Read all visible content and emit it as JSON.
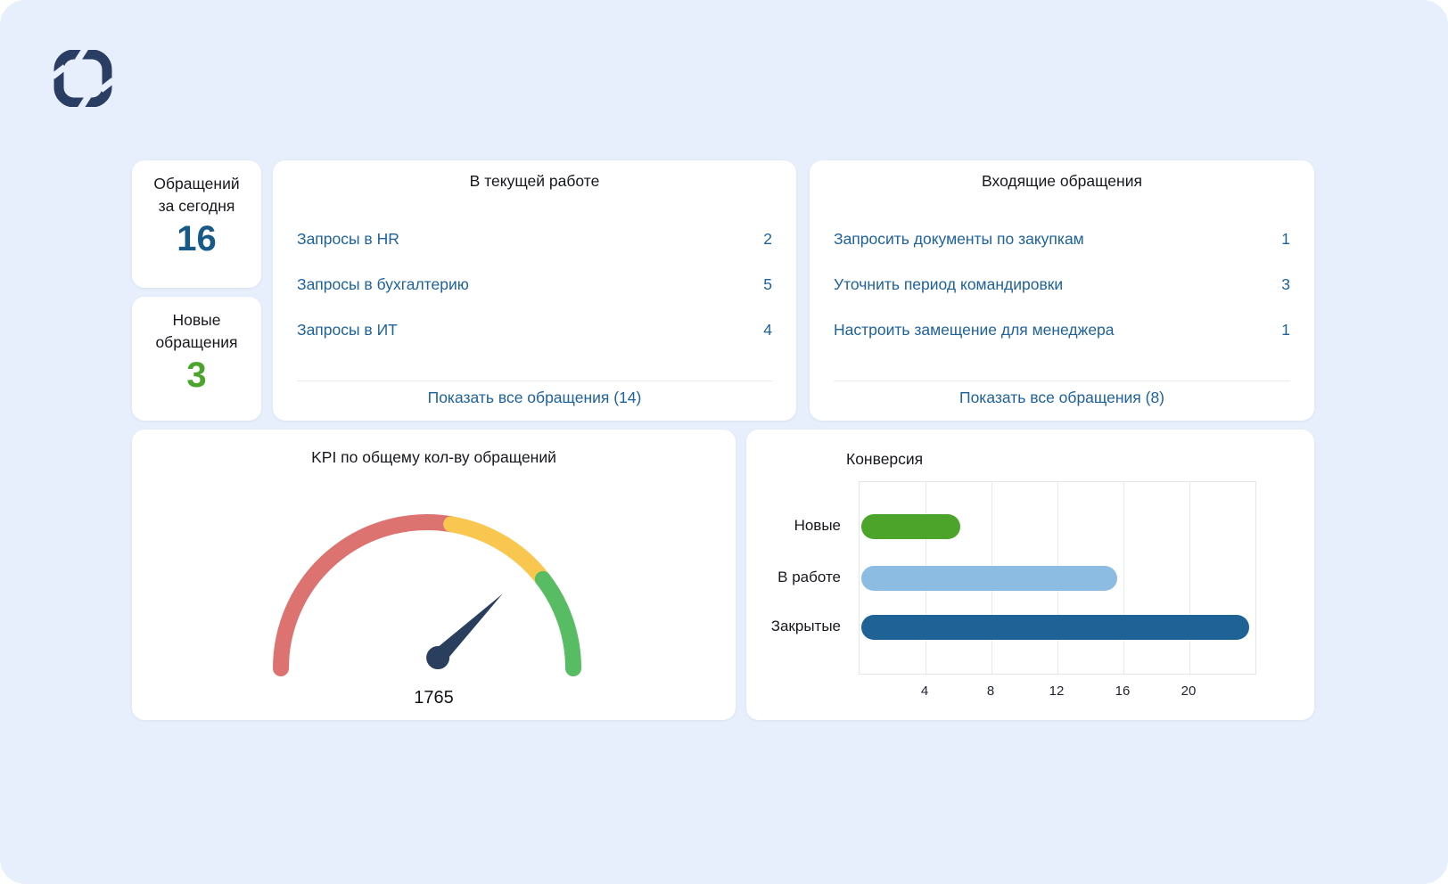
{
  "accent": {
    "link_blue": "#1E629B",
    "stat_blue": "#175A87",
    "stat_green": "#4BA42C",
    "logo_navy": "#2A3D63"
  },
  "stats": [
    {
      "line1": "Обращений",
      "line2": "за сегодня",
      "value": "16",
      "value_color": "#175A87"
    },
    {
      "line1": "Новые",
      "line2": "обращения",
      "value": "3",
      "value_color": "#4BA42C"
    }
  ],
  "current_work": {
    "title": "В текущей работе",
    "items": [
      {
        "label": "Запросы в HR",
        "count": "2"
      },
      {
        "label": "Запросы в бухгалтерию",
        "count": "5"
      },
      {
        "label": "Запросы в ИТ",
        "count": "4"
      }
    ],
    "link": "Показать все обращения (14)"
  },
  "incoming": {
    "title": "Входящие обращения",
    "items": [
      {
        "label": "Запросить документы по закупкам",
        "count": "1"
      },
      {
        "label": "Уточнить период командировки",
        "count": "3"
      },
      {
        "label": "Настроить замещение для менеджера",
        "count": "1"
      }
    ],
    "link": "Показать все обращения (8)"
  },
  "chart_data": [
    {
      "type": "gauge",
      "title": "KPI по общему кол-ву обращений",
      "value": "1765",
      "segments": [
        {
          "from": 0,
          "to": 0.553,
          "color": "#DC7370"
        },
        {
          "from": 0.553,
          "to": 0.791,
          "color": "#F9C74F"
        },
        {
          "from": 0.791,
          "to": 1,
          "color": "#57BC63"
        }
      ],
      "needle_fraction": 0.752,
      "needle_color": "#2A3E5E"
    },
    {
      "type": "bar",
      "title": "Конверсия",
      "orientation": "horizontal",
      "categories": [
        "Новые",
        "В работе",
        "Закрытые"
      ],
      "values": [
        6,
        15.5,
        23.5
      ],
      "colors": [
        "#4CA42B",
        "#8CBCE2",
        "#1F6296"
      ],
      "xticks": [
        4,
        8,
        12,
        16,
        20
      ],
      "xlim": [
        0,
        24
      ],
      "grid": true,
      "legend": false
    }
  ]
}
